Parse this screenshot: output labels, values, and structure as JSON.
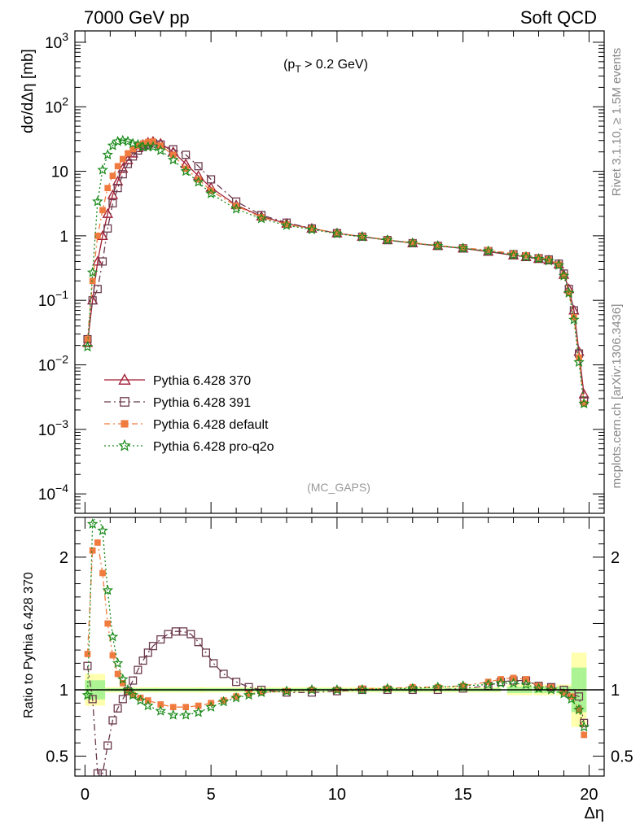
{
  "header": {
    "left": "7000 GeV pp",
    "right": "Soft QCD"
  },
  "side_labels": {
    "rivet": "Rivet 3.1.10, ≥ 1.5M events",
    "mcplots": "mcplots.cern.ch [arXiv:1306.3436]"
  },
  "annotation": {
    "cut_prefix": "(p",
    "cut_sub": "T",
    "cut_suffix": " > 0.2 GeV)",
    "analysis": "(MC_GAPS)"
  },
  "chart_data": {
    "type": "line",
    "xlabel": "Δη",
    "ylabel_top": "dσ/dΔη [mb]",
    "ylabel_bottom": "Ratio to Pythia 6.428 370",
    "xlim": [
      -0.4,
      20.6
    ],
    "ylim_top": [
      5e-05,
      1500
    ],
    "yscale_top": "log",
    "ylim_bottom": [
      0.35,
      2.3
    ],
    "xticks": [
      "0",
      "5",
      "10",
      "15",
      "20"
    ],
    "yticks_top": [
      {
        "v": 0.0001,
        "m": "10",
        "e": "−4"
      },
      {
        "v": 0.001,
        "m": "10",
        "e": "−3"
      },
      {
        "v": 0.01,
        "m": "10",
        "e": "−2"
      },
      {
        "v": 0.1,
        "m": "10",
        "e": "−1"
      },
      {
        "v": 1,
        "m": "1",
        "e": ""
      },
      {
        "v": 10,
        "m": "10",
        "e": ""
      },
      {
        "v": 100,
        "m": "10",
        "e": "2"
      },
      {
        "v": 1000,
        "m": "10",
        "e": "3"
      }
    ],
    "yticks_bottom": [
      {
        "v": 0.5,
        "l": "0.5"
      },
      {
        "v": 1,
        "l": "1"
      },
      {
        "v": 2,
        "l": "2"
      }
    ],
    "legend_placement": "lower-left",
    "series": [
      {
        "name": "Pythia 6.428 370",
        "color": "#a31f34",
        "marker": "triangle",
        "dash": "solid",
        "points": [
          [
            0.1,
            0.022
          ],
          [
            0.3,
            0.1
          ],
          [
            0.5,
            0.4
          ],
          [
            0.7,
            1.0
          ],
          [
            0.9,
            2.2
          ],
          [
            1.1,
            4.3
          ],
          [
            1.3,
            7.0
          ],
          [
            1.5,
            11
          ],
          [
            1.7,
            15
          ],
          [
            1.9,
            19
          ],
          [
            2.1,
            23
          ],
          [
            2.3,
            26
          ],
          [
            2.5,
            28
          ],
          [
            2.7,
            29
          ],
          [
            3.0,
            27
          ],
          [
            3.5,
            20
          ],
          [
            4.0,
            13
          ],
          [
            4.5,
            8.5
          ],
          [
            5.0,
            5.6
          ],
          [
            6.0,
            3.0
          ],
          [
            7.0,
            2.0
          ],
          [
            8.0,
            1.55
          ],
          [
            9.0,
            1.3
          ],
          [
            10.0,
            1.1
          ],
          [
            11.0,
            0.97
          ],
          [
            12.0,
            0.86
          ],
          [
            13.0,
            0.77
          ],
          [
            14.0,
            0.7
          ],
          [
            15.0,
            0.64
          ],
          [
            16.0,
            0.57
          ],
          [
            17.0,
            0.5
          ],
          [
            17.5,
            0.47
          ],
          [
            18.0,
            0.44
          ],
          [
            18.4,
            0.42
          ],
          [
            18.8,
            0.36
          ],
          [
            19.0,
            0.25
          ],
          [
            19.2,
            0.15
          ],
          [
            19.4,
            0.07
          ],
          [
            19.6,
            0.016
          ],
          [
            19.8,
            0.0035
          ]
        ]
      },
      {
        "name": "Pythia 6.428 391",
        "color": "#6b3a4d",
        "marker": "square",
        "dash": "8,4,2,4",
        "points": [
          [
            0.1,
            0.025
          ],
          [
            0.3,
            0.1
          ],
          [
            0.5,
            0.15
          ],
          [
            0.7,
            0.4
          ],
          [
            0.9,
            1.3
          ],
          [
            1.1,
            3.2
          ],
          [
            1.3,
            5.5
          ],
          [
            1.5,
            9
          ],
          [
            1.7,
            13
          ],
          [
            1.9,
            17
          ],
          [
            2.1,
            21
          ],
          [
            2.3,
            24
          ],
          [
            2.5,
            26
          ],
          [
            2.7,
            27
          ],
          [
            3.0,
            26
          ],
          [
            3.5,
            22
          ],
          [
            4.0,
            18
          ],
          [
            4.5,
            12
          ],
          [
            5.0,
            7.5
          ],
          [
            6.0,
            3.4
          ],
          [
            7.0,
            2.1
          ],
          [
            8.0,
            1.6
          ],
          [
            9.0,
            1.3
          ],
          [
            10.0,
            1.1
          ],
          [
            11.0,
            0.97
          ],
          [
            12.0,
            0.86
          ],
          [
            13.0,
            0.77
          ],
          [
            14.0,
            0.7
          ],
          [
            15.0,
            0.64
          ],
          [
            16.0,
            0.58
          ],
          [
            17.0,
            0.52
          ],
          [
            17.5,
            0.48
          ],
          [
            18.0,
            0.45
          ],
          [
            18.4,
            0.43
          ],
          [
            18.8,
            0.37
          ],
          [
            19.0,
            0.26
          ],
          [
            19.2,
            0.15
          ],
          [
            19.4,
            0.07
          ],
          [
            19.6,
            0.015
          ],
          [
            19.8,
            0.0028
          ]
        ]
      },
      {
        "name": "Pythia 6.428 default",
        "color": "#f07b3f",
        "marker": "filled-square",
        "dash": "7,4,2,4",
        "points": [
          [
            0.1,
            0.025
          ],
          [
            0.3,
            0.2
          ],
          [
            0.5,
            1.0
          ],
          [
            0.7,
            2.5
          ],
          [
            0.9,
            5.5
          ],
          [
            1.1,
            8.5
          ],
          [
            1.3,
            12
          ],
          [
            1.5,
            15.5
          ],
          [
            1.7,
            19
          ],
          [
            1.9,
            22
          ],
          [
            2.1,
            25
          ],
          [
            2.3,
            27
          ],
          [
            2.5,
            28.5
          ],
          [
            2.7,
            29
          ],
          [
            3.0,
            25
          ],
          [
            3.5,
            18
          ],
          [
            4.0,
            11
          ],
          [
            4.5,
            7.5
          ],
          [
            5.0,
            5.0
          ],
          [
            6.0,
            2.9
          ],
          [
            7.0,
            1.95
          ],
          [
            8.0,
            1.5
          ],
          [
            9.0,
            1.3
          ],
          [
            10.0,
            1.1
          ],
          [
            11.0,
            0.98
          ],
          [
            12.0,
            0.87
          ],
          [
            13.0,
            0.78
          ],
          [
            14.0,
            0.71
          ],
          [
            15.0,
            0.65
          ],
          [
            16.0,
            0.6
          ],
          [
            17.0,
            0.53
          ],
          [
            17.5,
            0.5
          ],
          [
            18.0,
            0.46
          ],
          [
            18.4,
            0.43
          ],
          [
            18.8,
            0.36
          ],
          [
            19.0,
            0.24
          ],
          [
            19.2,
            0.13
          ],
          [
            19.4,
            0.055
          ],
          [
            19.6,
            0.013
          ],
          [
            19.8,
            0.0025
          ]
        ]
      },
      {
        "name": "Pythia 6.428 pro-q2o",
        "color": "#1a8a1a",
        "marker": "star",
        "dash": "2,3",
        "points": [
          [
            0.1,
            0.019
          ],
          [
            0.3,
            0.27
          ],
          [
            0.5,
            3.4
          ],
          [
            0.7,
            10.5
          ],
          [
            0.9,
            18
          ],
          [
            1.1,
            25
          ],
          [
            1.3,
            29
          ],
          [
            1.5,
            30
          ],
          [
            1.7,
            29
          ],
          [
            1.9,
            27
          ],
          [
            2.1,
            26
          ],
          [
            2.3,
            24
          ],
          [
            2.5,
            24
          ],
          [
            2.7,
            24
          ],
          [
            3.0,
            21
          ],
          [
            3.5,
            15
          ],
          [
            4.0,
            10
          ],
          [
            4.5,
            6.8
          ],
          [
            5.0,
            4.5
          ],
          [
            6.0,
            2.6
          ],
          [
            7.0,
            1.85
          ],
          [
            8.0,
            1.45
          ],
          [
            9.0,
            1.25
          ],
          [
            10.0,
            1.08
          ],
          [
            11.0,
            0.96
          ],
          [
            12.0,
            0.86
          ],
          [
            13.0,
            0.77
          ],
          [
            14.0,
            0.7
          ],
          [
            15.0,
            0.64
          ],
          [
            16.0,
            0.58
          ],
          [
            17.0,
            0.5
          ],
          [
            17.5,
            0.47
          ],
          [
            18.0,
            0.44
          ],
          [
            18.4,
            0.41
          ],
          [
            18.8,
            0.35
          ],
          [
            19.0,
            0.24
          ],
          [
            19.2,
            0.13
          ],
          [
            19.4,
            0.05
          ],
          [
            19.6,
            0.011
          ],
          [
            19.8,
            0.0025
          ]
        ]
      }
    ],
    "ratio_series": [
      {
        "name": "Pythia 6.428 391",
        "points": [
          [
            0.1,
            1.18
          ],
          [
            0.3,
            0.93
          ],
          [
            0.5,
            0.37
          ],
          [
            0.7,
            0.37
          ],
          [
            0.9,
            0.58
          ],
          [
            1.1,
            0.77
          ],
          [
            1.3,
            0.86
          ],
          [
            1.5,
            0.93
          ],
          [
            1.7,
            0.99
          ],
          [
            1.9,
            1.07
          ],
          [
            2.1,
            1.15
          ],
          [
            2.3,
            1.22
          ],
          [
            2.5,
            1.28
          ],
          [
            2.7,
            1.33
          ],
          [
            3.0,
            1.38
          ],
          [
            3.3,
            1.42
          ],
          [
            3.6,
            1.44
          ],
          [
            3.9,
            1.44
          ],
          [
            4.2,
            1.42
          ],
          [
            4.5,
            1.36
          ],
          [
            4.8,
            1.28
          ],
          [
            5.1,
            1.2
          ],
          [
            5.5,
            1.12
          ],
          [
            6.0,
            1.06
          ],
          [
            6.5,
            1.02
          ],
          [
            7.0,
            1.0
          ],
          [
            8.0,
            0.98
          ],
          [
            9.0,
            0.98
          ],
          [
            10.0,
            0.99
          ],
          [
            11.0,
            1.0
          ],
          [
            12.0,
            1.0
          ],
          [
            13.0,
            1.0
          ],
          [
            14.0,
            1.0
          ],
          [
            15.0,
            1.01
          ],
          [
            16.0,
            1.03
          ],
          [
            16.5,
            1.06
          ],
          [
            17.0,
            1.07
          ],
          [
            17.5,
            1.07
          ],
          [
            18.0,
            1.03
          ],
          [
            18.5,
            1.02
          ],
          [
            19.0,
            1.0
          ],
          [
            19.3,
            0.97
          ],
          [
            19.6,
            0.95
          ],
          [
            19.8,
            0.75
          ]
        ]
      },
      {
        "name": "Pythia 6.428 default",
        "points": [
          [
            0.1,
            1.27
          ],
          [
            0.3,
            2.05
          ],
          [
            0.5,
            2.11
          ],
          [
            0.7,
            1.88
          ],
          [
            0.9,
            1.5
          ],
          [
            1.1,
            1.26
          ],
          [
            1.3,
            1.12
          ],
          [
            1.5,
            1.05
          ],
          [
            1.7,
            0.99
          ],
          [
            1.9,
            0.96
          ],
          [
            2.2,
            0.94
          ],
          [
            2.5,
            0.92
          ],
          [
            3.0,
            0.89
          ],
          [
            3.5,
            0.87
          ],
          [
            4.0,
            0.87
          ],
          [
            4.5,
            0.88
          ],
          [
            5.0,
            0.9
          ],
          [
            5.5,
            0.92
          ],
          [
            6.0,
            0.95
          ],
          [
            6.5,
            0.97
          ],
          [
            7.0,
            0.98
          ],
          [
            8.0,
            0.99
          ],
          [
            9.0,
            1.0
          ],
          [
            10.0,
            1.0
          ],
          [
            11.0,
            1.01
          ],
          [
            12.0,
            1.01
          ],
          [
            13.0,
            1.02
          ],
          [
            14.0,
            1.02
          ],
          [
            15.0,
            1.03
          ],
          [
            16.0,
            1.06
          ],
          [
            16.5,
            1.08
          ],
          [
            17.0,
            1.09
          ],
          [
            17.5,
            1.08
          ],
          [
            18.0,
            1.03
          ],
          [
            18.5,
            1.02
          ],
          [
            19.0,
            0.98
          ],
          [
            19.3,
            0.95
          ],
          [
            19.6,
            0.85
          ],
          [
            19.8,
            0.66
          ]
        ]
      },
      {
        "name": "Pythia 6.428 pro-q2o",
        "points": [
          [
            0.1,
            0.96
          ],
          [
            0.3,
            2.25
          ],
          [
            0.5,
            2.35
          ],
          [
            0.7,
            2.2
          ],
          [
            0.9,
            1.75
          ],
          [
            1.1,
            1.4
          ],
          [
            1.3,
            1.2
          ],
          [
            1.5,
            1.08
          ],
          [
            1.7,
            1.0
          ],
          [
            1.9,
            0.96
          ],
          [
            2.2,
            0.92
          ],
          [
            2.5,
            0.88
          ],
          [
            3.0,
            0.84
          ],
          [
            3.5,
            0.81
          ],
          [
            4.0,
            0.81
          ],
          [
            4.5,
            0.83
          ],
          [
            5.0,
            0.87
          ],
          [
            5.5,
            0.91
          ],
          [
            6.0,
            0.94
          ],
          [
            6.5,
            0.96
          ],
          [
            7.0,
            0.98
          ],
          [
            8.0,
            0.99
          ],
          [
            9.0,
            1.0
          ],
          [
            10.0,
            1.0
          ],
          [
            11.0,
            1.0
          ],
          [
            12.0,
            1.01
          ],
          [
            13.0,
            1.01
          ],
          [
            14.0,
            1.02
          ],
          [
            15.0,
            1.03
          ],
          [
            16.0,
            1.04
          ],
          [
            16.5,
            1.05
          ],
          [
            17.0,
            1.05
          ],
          [
            17.5,
            1.04
          ],
          [
            18.0,
            1.01
          ],
          [
            18.5,
            1.0
          ],
          [
            19.0,
            0.97
          ],
          [
            19.3,
            0.93
          ],
          [
            19.6,
            0.85
          ],
          [
            19.8,
            0.72
          ]
        ]
      }
    ]
  }
}
